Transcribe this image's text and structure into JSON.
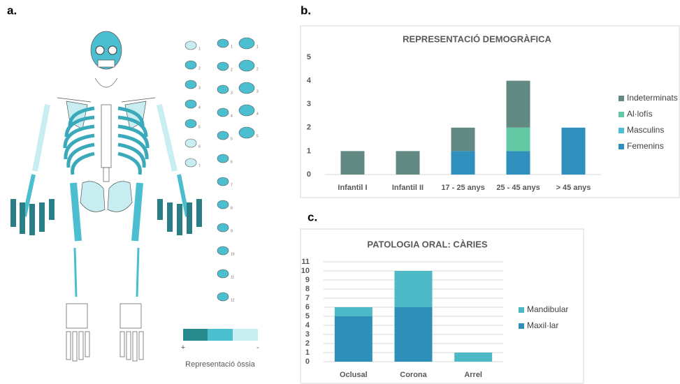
{
  "figure": {
    "panel_labels": [
      "a.",
      "b.",
      "c."
    ],
    "bone_legend": {
      "title": "Representació òssia",
      "high": "+",
      "low": "-"
    },
    "vertebrae": {
      "cervical": [
        "1",
        "2",
        "3",
        "4",
        "5",
        "6",
        "7"
      ],
      "thoracic": [
        "1",
        "2",
        "3",
        "4",
        "5",
        "6",
        "7",
        "8",
        "9",
        "10",
        "11",
        "12"
      ],
      "lumbar": [
        "1",
        "2",
        "3",
        "4",
        "5"
      ]
    }
  },
  "chart_data": [
    {
      "type": "stacked-bar",
      "title": "REPRESENTACIÓ DEMOGRÀFICA",
      "categories": [
        "Infantil I",
        "Infantil II",
        "17 - 25 anys",
        "25 - 45 anys",
        "> 45 anys"
      ],
      "series": [
        {
          "name": "Femenins",
          "color": "#2f8fbd",
          "values": [
            0,
            0,
            1,
            1,
            2
          ]
        },
        {
          "name": "Masculins",
          "color": "#4bbfd4",
          "values": [
            0,
            0,
            0,
            0,
            0
          ]
        },
        {
          "name": "Al·lofís",
          "color": "#62c9a4",
          "values": [
            0,
            0,
            0,
            1,
            0
          ]
        },
        {
          "name": "Indeterminats",
          "color": "#638a82",
          "values": [
            1,
            1,
            1,
            2,
            0
          ]
        }
      ],
      "ylim": [
        0,
        5
      ],
      "yticks": [
        0,
        1,
        2,
        3,
        4,
        5
      ],
      "grid": false,
      "legend": "right"
    },
    {
      "type": "stacked-bar",
      "title": "PATOLOGIA ORAL: CÀRIES",
      "categories": [
        "Oclusal",
        "Corona",
        "Arrel"
      ],
      "series": [
        {
          "name": "Maxil·lar",
          "color": "#2e8fb8",
          "values": [
            5,
            6,
            0
          ]
        },
        {
          "name": "Mandibular",
          "color": "#4db8c6",
          "values": [
            1,
            4,
            1
          ]
        }
      ],
      "ylim": [
        0,
        11
      ],
      "yticks": [
        0,
        1,
        2,
        3,
        4,
        5,
        6,
        7,
        8,
        9,
        10,
        11
      ],
      "grid": true,
      "legend": "right"
    }
  ]
}
